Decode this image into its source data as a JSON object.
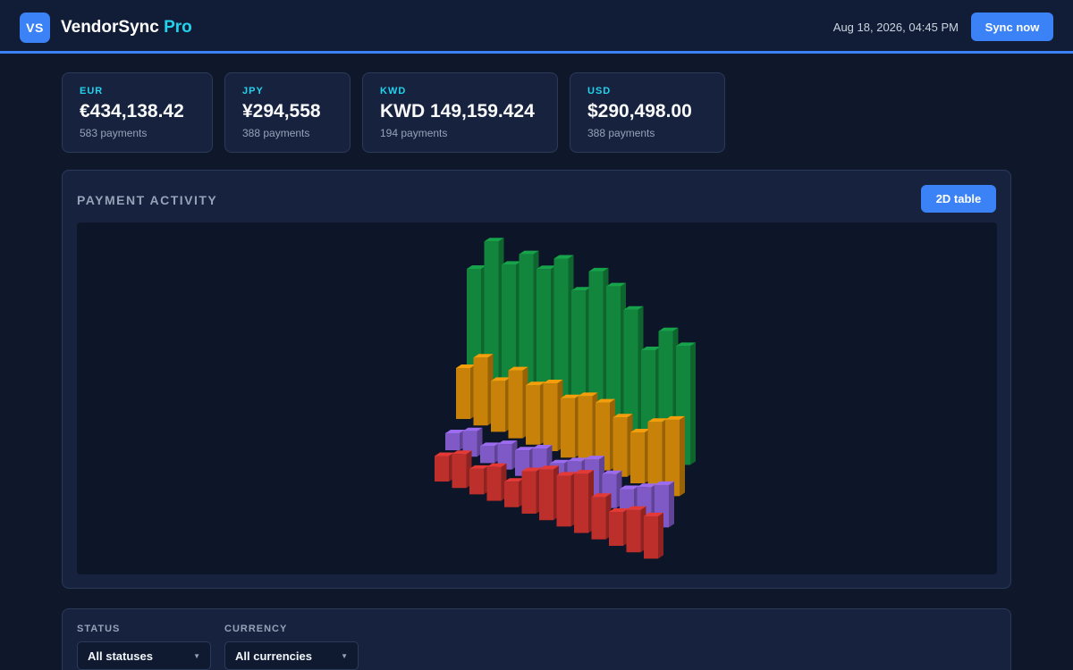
{
  "app": {
    "logo": "VS",
    "name": "VendorSync",
    "name_accent": "Pro"
  },
  "header": {
    "datetime": "Aug 18, 2026, 04:45 PM",
    "sync_label": "Sync now"
  },
  "kpis": [
    {
      "code": "EUR",
      "amount": "€434,138.42",
      "count": "583 payments"
    },
    {
      "code": "JPY",
      "amount": "¥294,558",
      "count": "388 payments"
    },
    {
      "code": "KWD",
      "amount": "KWD 149,159.424",
      "count": "194 payments"
    },
    {
      "code": "USD",
      "amount": "$290,498.00",
      "count": "388 payments"
    }
  ],
  "activity": {
    "title": "PAYMENT ACTIVITY",
    "toggle_label": "2D table",
    "chart_data": {
      "type": "bar",
      "style": "3d-grouped-bars",
      "series": [
        {
          "color": "#e53935",
          "values": [
            3,
            4,
            3,
            4,
            3,
            5,
            6,
            6,
            7,
            5,
            4,
            5,
            5
          ]
        },
        {
          "color": "#9b6cf0",
          "values": [
            2,
            3,
            2,
            3,
            3,
            4,
            3,
            4,
            5,
            4,
            3,
            4,
            5
          ]
        },
        {
          "color": "#f59e0b",
          "values": [
            6,
            8,
            6,
            8,
            7,
            8,
            7,
            8,
            8,
            7,
            6,
            8,
            9
          ]
        },
        {
          "color": "#16a34a",
          "values": [
            14,
            18,
            16,
            18,
            17,
            19,
            16,
            19,
            18,
            16,
            12,
            15,
            14
          ]
        }
      ]
    }
  },
  "filters": {
    "status": {
      "label": "STATUS",
      "value": "All statuses"
    },
    "currency": {
      "label": "CURRENCY",
      "value": "All currencies"
    }
  },
  "icons": {
    "dropdown": "chevron-down-icon"
  },
  "colors": {
    "accent": "#3b82f6",
    "brand_accent": "#22d3ee",
    "background": "#0f172a",
    "panel": "#17223e"
  }
}
